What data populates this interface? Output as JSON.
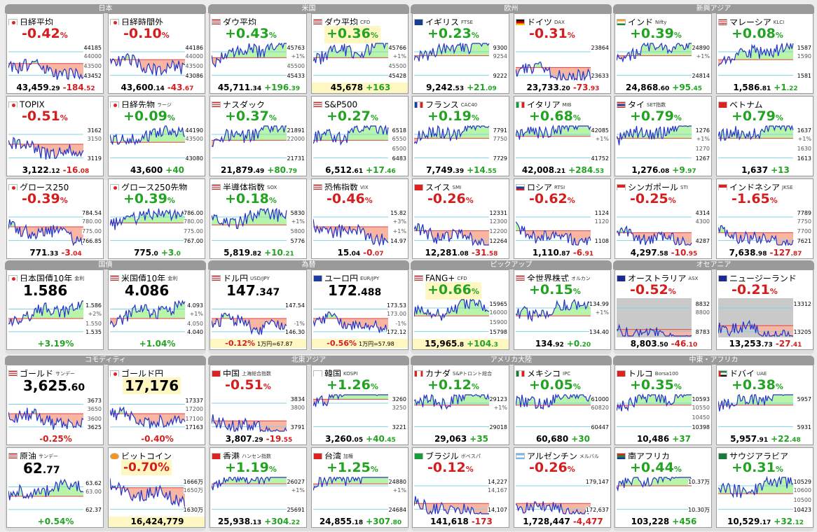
{
  "regions": [
    {
      "title": "日本",
      "cards": [
        {
          "name": "日経平均",
          "sub": "",
          "flag": "jp",
          "chg_int": "-0.42",
          "dir": "down",
          "val_int": "43,459",
          "val_dec": ".29",
          "net_int": "-184",
          "net_dec": ".52",
          "hi": "44185",
          "lo": "43452",
          "t1": "44000",
          "t2": "43500",
          "bl": 0.45,
          "wave": 1
        },
        {
          "name": "日経時間外",
          "sub": "",
          "flag": "jp",
          "chg_int": "-0.10",
          "dir": "down",
          "val_int": "43,600",
          "val_dec": ".14",
          "net_int": "-43",
          "net_dec": ".67",
          "hi": "44186",
          "lo": "43086",
          "t1": "44000",
          "t2": "43500",
          "bl": 0.55,
          "wave": 2
        },
        {
          "name": "TOPIX",
          "sub": "",
          "flag": "jp",
          "chg_int": "-0.51",
          "dir": "down",
          "val_int": "3,122",
          "val_dec": ".12",
          "net_int": "-16",
          "net_dec": ".08",
          "hi": "3162",
          "lo": "3119",
          "t1": "3150",
          "t2": "",
          "bl": 0.5,
          "wave": 3
        },
        {
          "name": "日経先物",
          "sub": "ラージ",
          "flag": "jp",
          "chg_int": "+0.09",
          "dir": "up",
          "val_int": "43,600",
          "val_dec": "",
          "net_int": "+40",
          "net_dec": "",
          "hi": "44190",
          "lo": "43080",
          "t1": "43500",
          "t2": "",
          "bl": 0.55,
          "wave": 4
        },
        {
          "name": "グロース250",
          "sub": "",
          "flag": "jp",
          "chg_int": "-0.39",
          "dir": "down",
          "val_int": "771",
          "val_dec": ".33",
          "net_int": "-3",
          "net_dec": ".04",
          "hi": "784.54",
          "lo": "766.85",
          "t1": "780.00",
          "t2": "775.00",
          "bl": 0.5,
          "wave": 5
        },
        {
          "name": "グロース250先物",
          "sub": "",
          "flag": "jp",
          "chg_int": "+0.39",
          "dir": "up",
          "val_int": "775",
          "val_dec": ".0",
          "net_int": "+3",
          "net_dec": ".0",
          "hi": "786.00",
          "lo": "767.00",
          "t1": "780.00",
          "t2": "775.00",
          "bl": 0.6,
          "wave": 6
        }
      ]
    },
    {
      "title": "米国",
      "cards": [
        {
          "name": "ダウ平均",
          "sub": "",
          "flag": "us",
          "chg_int": "+0.43",
          "dir": "up",
          "val_int": "45,711",
          "val_dec": ".34",
          "net_int": "+196",
          "net_dec": ".39",
          "hi": "45763",
          "lo": "45433",
          "t1": "+1%",
          "t2": "45500",
          "bl": 0.6,
          "wave": 7
        },
        {
          "name": "ダウ平均",
          "sub": "CFD",
          "flag": "us",
          "chg_int": "+0.36",
          "dir": "up",
          "val_int": "45,678",
          "val_dec": "",
          "net_int": "+163",
          "net_dec": "",
          "hi": "45766",
          "lo": "45428",
          "t1": "+1%",
          "t2": "45500",
          "bl": 0.6,
          "wave": 8,
          "hl": true
        },
        {
          "name": "ナスダック",
          "sub": "",
          "flag": "us",
          "chg_int": "+0.37",
          "dir": "up",
          "val_int": "21,879",
          "val_dec": ".49",
          "net_int": "+80",
          "net_dec": ".79",
          "hi": "21891",
          "lo": "21731",
          "t1": "22000",
          "t2": "",
          "bl": 0.6,
          "wave": 9
        },
        {
          "name": "S&P500",
          "sub": "",
          "flag": "us",
          "chg_int": "+0.27",
          "dir": "up",
          "val_int": "6,512",
          "val_dec": ".61",
          "net_int": "+17",
          "net_dec": ".46",
          "hi": "6518",
          "lo": "6483",
          "t1": "6550",
          "t2": "6500",
          "bl": 0.6,
          "wave": 10
        },
        {
          "name": "半導体指数",
          "sub": "SOX",
          "flag": "us",
          "chg_int": "+0.18",
          "dir": "up",
          "val_int": "5,819",
          "val_dec": ".82",
          "net_int": "+10",
          "net_dec": ".21",
          "hi": "5830",
          "lo": "5776",
          "t1": "+1%",
          "t2": "5800",
          "bl": 0.55,
          "wave": 11
        },
        {
          "name": "恐怖指数",
          "sub": "VIX",
          "flag": "us",
          "chg_int": "-0.46",
          "dir": "down",
          "val_int": "15",
          "val_dec": ".04",
          "net_int": "-0",
          "net_dec": ".07",
          "hi": "15.82",
          "lo": "14.97",
          "t1": "+3%",
          "t2": "+1%",
          "bl": 0.5,
          "wave": 12
        }
      ]
    },
    {
      "title": "欧州",
      "cards": [
        {
          "name": "イギリス",
          "sub": "FTSE",
          "flag": "gb",
          "chg_int": "+0.23",
          "dir": "up",
          "val_int": "9,242",
          "val_dec": ".53",
          "net_int": "+21",
          "net_dec": ".09",
          "hi": "9300",
          "lo": "9222",
          "t1": "9254",
          "t2": "",
          "bl": 0.65,
          "wave": 13
        },
        {
          "name": "ドイツ",
          "sub": "DAX",
          "flag": "de",
          "chg_int": "-0.31",
          "dir": "down",
          "val_int": "23,733",
          "val_dec": ".20",
          "net_int": "-73",
          "net_dec": ".93",
          "hi": "23864",
          "lo": "23633",
          "t1": "",
          "t2": "",
          "bl": 0.35,
          "wave": 14
        },
        {
          "name": "フランス",
          "sub": "CAC40",
          "flag": "fr",
          "chg_int": "+0.19",
          "dir": "up",
          "val_int": "7,749",
          "val_dec": ".39",
          "net_int": "+14",
          "net_dec": ".55",
          "hi": "7791",
          "lo": "7729",
          "t1": "7750",
          "t2": "",
          "bl": 0.65,
          "wave": 15
        },
        {
          "name": "イタリア",
          "sub": "MIB",
          "flag": "it",
          "chg_int": "+0.68",
          "dir": "up",
          "val_int": "42,008",
          "val_dec": ".21",
          "net_int": "+284",
          "net_dec": ".53",
          "hi": "42085",
          "lo": "41752",
          "t1": "+1%",
          "t2": "",
          "bl": 0.7,
          "wave": 16
        },
        {
          "name": "スイス",
          "sub": "SMI",
          "flag": "ch",
          "chg_int": "-0.26",
          "dir": "down",
          "val_int": "12,281",
          "val_dec": ".08",
          "net_int": "-31",
          "net_dec": ".58",
          "hi": "12331",
          "lo": "12264",
          "t1": "12300",
          "t2": "12200",
          "bl": 0.4,
          "wave": 17
        },
        {
          "name": "ロシア",
          "sub": "RTSI",
          "flag": "ru",
          "chg_int": "-0.62",
          "dir": "down",
          "val_int": "1,110",
          "val_dec": ".87",
          "net_int": "-6",
          "net_dec": ".91",
          "hi": "1124",
          "lo": "1108",
          "t1": "1120",
          "t2": "",
          "bl": 0.4,
          "wave": 18
        }
      ]
    },
    {
      "title": "新興アジア",
      "cards": [
        {
          "name": "インド",
          "sub": "Nifty",
          "flag": "in",
          "chg_int": "+0.39",
          "dir": "up",
          "val_int": "24,868",
          "val_dec": ".60",
          "net_int": "+95",
          "net_dec": ".45",
          "hi": "24890",
          "lo": "24814",
          "t1": "+1%",
          "t2": "",
          "bl": 0.65,
          "wave": 19
        },
        {
          "name": "マレーシア",
          "sub": "KLCI",
          "flag": "my",
          "chg_int": "+0.08",
          "dir": "up",
          "val_int": "1,586",
          "val_dec": ".81",
          "net_int": "+1",
          "net_dec": ".22",
          "hi": "1587",
          "lo": "1581",
          "t1": "1590",
          "t2": "",
          "bl": 0.55,
          "wave": 20
        },
        {
          "name": "タイ",
          "sub": "SET指数",
          "flag": "th",
          "chg_int": "+0.79",
          "dir": "up",
          "val_int": "1,276",
          "val_dec": ".08",
          "net_int": "+9",
          "net_dec": ".97",
          "hi": "1276",
          "lo": "1267",
          "t1": "+1%",
          "t2": "1270",
          "bl": 0.65,
          "wave": 21
        },
        {
          "name": "ベトナム",
          "sub": "",
          "flag": "vn",
          "chg_int": "+0.79",
          "dir": "up",
          "val_int": "1,637",
          "val_dec": "",
          "net_int": "+13",
          "net_dec": "",
          "hi": "1637",
          "lo": "1613",
          "t1": "+1%",
          "t2": "1630",
          "bl": 0.65,
          "wave": 22
        },
        {
          "name": "シンガポール",
          "sub": "STI",
          "flag": "sg",
          "chg_int": "-0.25",
          "dir": "down",
          "val_int": "4,297",
          "val_dec": ".58",
          "net_int": "-10",
          "net_dec": ".95",
          "hi": "4314",
          "lo": "4287",
          "t1": "4300",
          "t2": "",
          "bl": 0.35,
          "wave": 23
        },
        {
          "name": "インドネシア",
          "sub": "JKSE",
          "flag": "id",
          "chg_int": "-1.65",
          "dir": "down",
          "val_int": "7,638",
          "val_dec": ".98",
          "net_int": "-127",
          "net_dec": ".87",
          "hi": "7789",
          "lo": "7621",
          "t1": "7750",
          "t2": "7700",
          "bl": 0.35,
          "wave": 24
        }
      ]
    },
    {
      "title": "国債",
      "cards": [
        {
          "type": "bond",
          "name": "日本国債10年",
          "sub": "金利",
          "flag": "jp",
          "big_int": "1.586",
          "big_dec": "",
          "chg": "+3.19%",
          "dir": "up",
          "hi": "1.586",
          "lo": "1.535",
          "t1": "+2%",
          "t2": "1.550",
          "wave": 25
        },
        {
          "type": "bond",
          "name": "米国債10年",
          "sub": "金利",
          "flag": "us",
          "big_int": "4.086",
          "big_dec": "",
          "chg": "+1.04%",
          "dir": "up",
          "hi": "4.093",
          "lo": "4.040",
          "t1": "+1%",
          "t2": "4.050",
          "wave": 26
        }
      ]
    },
    {
      "title": "為替",
      "cards": [
        {
          "type": "fx",
          "name": "ドル円",
          "sub": "USD/JPY",
          "flag": "us",
          "big_int": "147",
          "big_dec": ".347",
          "chg": "-0.12%",
          "dir": "down",
          "yen": "1万円=67.87",
          "hi": "147.54",
          "lo": "146.30",
          "t1": "",
          "t2": "-1%",
          "wave": 27
        },
        {
          "type": "fx",
          "name": "ユーロ円",
          "sub": "EUR/JPY",
          "flag": "eu",
          "big_int": "172",
          "big_dec": ".488",
          "chg": "-0.56%",
          "dir": "down",
          "yen": "1万円=57.98",
          "hi": "173.53",
          "lo": "172.12",
          "t1": "173.00",
          "t2": "-1%",
          "wave": 28
        }
      ]
    },
    {
      "title": "ピックアップ",
      "cards": [
        {
          "name": "FANG+",
          "sub": "CFD",
          "flag": "us",
          "chg_int": "+0.66",
          "dir": "up",
          "val_int": "15,965",
          "val_dec": ".8",
          "net_int": "+104",
          "net_dec": ".3",
          "hi": "15965",
          "lo": "15798",
          "t1": "16000",
          "t2": "15900",
          "bl": 0.55,
          "wave": 29,
          "hl": true
        },
        {
          "name": "全世界株式",
          "sub": "オルカン",
          "flag": "us",
          "chg_int": "+0.15",
          "dir": "up",
          "val_int": "134",
          "val_dec": ".92",
          "net_int": "+0",
          "net_dec": ".20",
          "hi": "134.99",
          "lo": "134.40",
          "t1": "+1%",
          "t2": "",
          "bl": 0.55,
          "wave": 30
        }
      ]
    },
    {
      "title": "オセアニア",
      "cards": [
        {
          "name": "オーストラリア",
          "sub": "ASX",
          "flag": "au",
          "chg_int": "-0.52",
          "dir": "down",
          "val_int": "8,803",
          "val_dec": ".50",
          "net_int": "-46",
          "net_dec": ".10",
          "hi": "8832",
          "lo": "8783",
          "t1": "8800",
          "t2": "",
          "bl": 0.2,
          "wave": 31,
          "grey": true
        },
        {
          "name": "ニュージーランド",
          "sub": "",
          "flag": "nz",
          "chg_int": "-0.21",
          "dir": "down",
          "val_int": "13,253",
          "val_dec": ".73",
          "net_int": "-27",
          "net_dec": ".41",
          "hi": "13312",
          "lo": "13205",
          "t1": "",
          "t2": "",
          "bl": 0.3,
          "wave": 32,
          "grey": true
        }
      ]
    },
    {
      "title": "コモディティ",
      "cards": [
        {
          "type": "bond",
          "name": "ゴールド",
          "sub": "サンデー",
          "flag": "us",
          "big_int": "3,625",
          "big_dec": ".60",
          "chg": "-0.25%",
          "dir": "down",
          "hi": "3673",
          "lo": "3625",
          "t1": "3650",
          "t2": "3600",
          "wave": 33
        },
        {
          "type": "bond",
          "name": "ゴールド円",
          "sub": "",
          "flag": "jp",
          "big_int": "17,176",
          "big_dec": "",
          "chg": "-0.40%",
          "dir": "down",
          "hi": "17337",
          "lo": "17163",
          "t1": "17200",
          "t2": "17100",
          "wave": 34,
          "hl": true
        },
        {
          "type": "bond",
          "name": "原油",
          "sub": "サンデー",
          "flag": "us",
          "big_int": "62",
          "big_dec": ".77",
          "chg": "+0.54%",
          "dir": "up",
          "hi": "63.62",
          "lo": "62.37",
          "t1": "63.00",
          "t2": "",
          "wave": 35
        },
        {
          "type": "bond2",
          "name": "ビットコイン",
          "sub": "",
          "flag": "btc",
          "chg_top": "-0.70%",
          "dir": "down",
          "bottom": "16,424,779",
          "hi": "1666万",
          "lo": "1630万",
          "t1": "1650万",
          "t2": "",
          "wave": 36,
          "hl": true
        }
      ]
    },
    {
      "title": "北東アジア",
      "cards": [
        {
          "name": "中国",
          "sub": "上海総合指数",
          "flag": "cn",
          "chg_int": "-0.51",
          "dir": "down",
          "val_int": "3,807",
          "val_dec": ".29",
          "net_int": "-19",
          "net_dec": ".55",
          "hi": "3834",
          "lo": "3791",
          "t1": "3800",
          "t2": "",
          "bl": 0.3,
          "wave": 37
        },
        {
          "name": "韓国",
          "sub": "KOSPI",
          "flag": "kr",
          "chg_int": "+1.26",
          "dir": "up",
          "val_int": "3,260",
          "val_dec": ".05",
          "net_int": "+40",
          "net_dec": ".45",
          "hi": "3260",
          "lo": "3221",
          "t1": "3250",
          "t2": "",
          "bl": 0.85,
          "wave": 38
        },
        {
          "name": "香港",
          "sub": "ハンセン指数",
          "flag": "hk",
          "chg_int": "+1.19",
          "dir": "up",
          "val_int": "25,938",
          "val_dec": ".13",
          "net_int": "+304",
          "net_dec": ".22",
          "hi": "26027",
          "lo": "25691",
          "t1": "+1%",
          "t2": "",
          "bl": 0.8,
          "wave": 39
        },
        {
          "name": "台湾",
          "sub": "加権",
          "flag": "tw",
          "chg_int": "+1.25",
          "dir": "up",
          "val_int": "24,855",
          "val_dec": ".18",
          "net_int": "+307",
          "net_dec": ".80",
          "hi": "24880",
          "lo": "24684",
          "t1": "+1%",
          "t2": "",
          "bl": 0.8,
          "wave": 40
        }
      ]
    },
    {
      "title": "アメリカ大陸",
      "cards": [
        {
          "name": "カナダ",
          "sub": "S&Pトロント総合",
          "flag": "ca",
          "chg_int": "+0.12",
          "dir": "up",
          "val_int": "29,063",
          "val_dec": "",
          "net_int": "+35",
          "net_dec": "",
          "hi": "29123",
          "lo": "29018",
          "t1": "+1%",
          "t2": "",
          "bl": 0.7,
          "wave": 41
        },
        {
          "name": "メキシコ",
          "sub": "IPC",
          "flag": "mx",
          "chg_int": "+0.05",
          "dir": "up",
          "val_int": "60,680",
          "val_dec": "",
          "net_int": "+30",
          "net_dec": "",
          "hi": "61000",
          "lo": "60447",
          "t1": "60820",
          "t2": "",
          "bl": 0.7,
          "wave": 42
        },
        {
          "name": "ブラジル",
          "sub": "ボベスパ",
          "flag": "br",
          "chg_int": "-0.12",
          "dir": "down",
          "val_int": "141,618",
          "val_dec": "",
          "net_int": "-173",
          "net_dec": "",
          "hi": "14,227",
          "lo": "14,107",
          "t1": "14,167",
          "t2": "",
          "bl": 0.3,
          "wave": 43
        },
        {
          "name": "アルゼンチン",
          "sub": "メルバル",
          "flag": "ar",
          "chg_int": "-0.26",
          "dir": "down",
          "val_int": "1,728,447",
          "val_dec": "",
          "net_int": "-4,477",
          "net_dec": "",
          "hi": "179,147",
          "lo": "172,637",
          "t1": "",
          "t2": "",
          "bl": 0.3,
          "wave": 44
        }
      ]
    },
    {
      "title": "中東・アフリカ",
      "cards": [
        {
          "name": "トルコ",
          "sub": "Borsa100",
          "flag": "tr",
          "chg_int": "+0.35",
          "dir": "up",
          "val_int": "10,486",
          "val_dec": "",
          "net_int": "+37",
          "net_dec": "",
          "hi": "10593",
          "lo": "10398",
          "t1": "10550",
          "t2": "10450",
          "bl": 0.7,
          "wave": 45
        },
        {
          "name": "ドバイ",
          "sub": "UAE",
          "flag": "ae",
          "chg_int": "+0.38",
          "dir": "up",
          "val_int": "5,957",
          "val_dec": ".91",
          "net_int": "+22",
          "net_dec": ".48",
          "hi": "5957",
          "lo": "5931",
          "t1": "",
          "t2": "",
          "bl": 0.7,
          "wave": 46
        },
        {
          "name": "南アフリカ",
          "sub": "",
          "flag": "za",
          "chg_int": "+0.44",
          "dir": "up",
          "val_int": "103,228",
          "val_dec": "",
          "net_int": "+456",
          "net_dec": "",
          "hi": "10.37万",
          "lo": "10.30万",
          "t1": "",
          "t2": "",
          "bl": 0.75,
          "wave": 47
        },
        {
          "name": "サウジアラビア",
          "sub": "",
          "flag": "sa",
          "chg_int": "+0.31",
          "dir": "up",
          "val_int": "10,529",
          "val_dec": ".17",
          "net_int": "+32",
          "net_dec": ".12",
          "hi": "10529",
          "lo": "10423",
          "t1": "10600",
          "t2": "10500",
          "bl": 0.55,
          "wave": 48
        }
      ]
    }
  ],
  "colors": {
    "up": "#22a322",
    "down": "#d41d1d",
    "upfill": "#b9f5a8",
    "downfill": "#f7b5a2",
    "line": "#2233cc"
  }
}
